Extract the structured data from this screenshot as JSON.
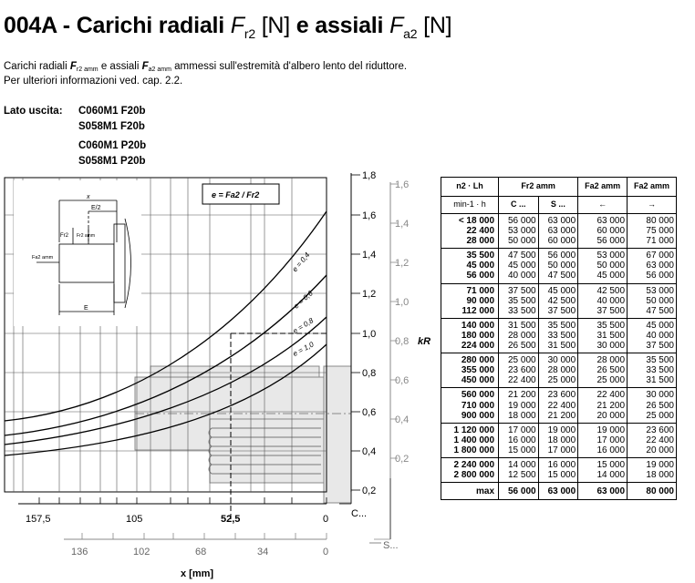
{
  "header": {
    "code": "004A",
    "title_a": "Carichi radiali",
    "title_b": "e assiali",
    "unit": "[N]",
    "sym_fr": "F",
    "sub_fr": "r2",
    "sym_fa": "F",
    "sub_fa": "a2",
    "sep": "-"
  },
  "desc": {
    "l1_a": "Carichi radiali",
    "fr": "F",
    "fr_sub": "r2 amm",
    "l1_b": "e assiali",
    "fa": "F",
    "fa_sub": "a2 amm",
    "l1_c": "ammessi sull'estremità d'albero lento del riduttore.",
    "l2": "Per ulteriori informazioni ved. cap. 2.2."
  },
  "lato": {
    "label": "Lato uscita:",
    "models": [
      "C060M1 F20b",
      "S058M1 F20b",
      "C060M1 P20b",
      "S058M1 P20b"
    ]
  },
  "chart": {
    "formula": "e = Fa2 / Fr2",
    "left_axis": [
      "1,8",
      "1,6",
      "1,4",
      "1,2",
      "1,0",
      "0,8",
      "0,6",
      "0,4",
      "0,2"
    ],
    "right_axis": [
      "1,6",
      "1,4",
      "1,2",
      "1,0",
      "0,8",
      "0,6",
      "0,4",
      "0,2"
    ],
    "kr_label": "kR",
    "c_ticks": [
      "157,5",
      "105",
      "52,5",
      "0"
    ],
    "c_label": "C...",
    "s_ticks": [
      "136",
      "102",
      "68",
      "34",
      "0"
    ],
    "s_label": "S...",
    "x_label": "x [mm]",
    "curves": [
      "e = 0,4",
      "e = 0,6",
      "e = 0,8",
      "e = 1,0"
    ],
    "diagram": {
      "x": "x",
      "e2": "E/2",
      "e": "E",
      "fr": "Fr2",
      "frmm": "Fr2 amm",
      "fa": "Fa2 amm"
    }
  },
  "table": {
    "h_n": "n2 · Lh",
    "h_unit": "min-1 · h",
    "h_fr": "Fr2 amm",
    "h_c": "C ...",
    "h_s": "S ...",
    "h_fa1": "Fa2 amm",
    "h_fa2": "Fa2 amm",
    "arrow_l": "←",
    "arrow_r": "→",
    "groups": [
      {
        "n": [
          "< 18 000",
          "22 400",
          "28 000"
        ],
        "c": [
          "56 000",
          "53 000",
          "50 000"
        ],
        "s": [
          "63 000",
          "63 000",
          "60 000"
        ],
        "fa1": [
          "63 000",
          "60 000",
          "56 000"
        ],
        "fa2": [
          "80 000",
          "75 000",
          "71 000"
        ]
      },
      {
        "n": [
          "35 500",
          "45 000",
          "56 000"
        ],
        "c": [
          "47 500",
          "45 000",
          "40 000"
        ],
        "s": [
          "56 000",
          "50 000",
          "47 500"
        ],
        "fa1": [
          "53 000",
          "50 000",
          "45 000"
        ],
        "fa2": [
          "67 000",
          "63 000",
          "56 000"
        ]
      },
      {
        "n": [
          "71 000",
          "90 000",
          "112 000"
        ],
        "c": [
          "37 500",
          "35 500",
          "33 500"
        ],
        "s": [
          "45 000",
          "42 500",
          "37 500"
        ],
        "fa1": [
          "42 500",
          "40 000",
          "37 500"
        ],
        "fa2": [
          "53 000",
          "50 000",
          "47 500"
        ]
      },
      {
        "n": [
          "140 000",
          "180 000",
          "224 000"
        ],
        "c": [
          "31 500",
          "28 000",
          "26 500"
        ],
        "s": [
          "35 500",
          "33 500",
          "31 500"
        ],
        "fa1": [
          "35 500",
          "31 500",
          "30 000"
        ],
        "fa2": [
          "45 000",
          "40 000",
          "37 500"
        ]
      },
      {
        "n": [
          "280 000",
          "355 000",
          "450 000"
        ],
        "c": [
          "25 000",
          "23 600",
          "22 400"
        ],
        "s": [
          "30 000",
          "28 000",
          "25 000"
        ],
        "fa1": [
          "28 000",
          "26 500",
          "25 000"
        ],
        "fa2": [
          "35 500",
          "33 500",
          "31 500"
        ]
      },
      {
        "n": [
          "560 000",
          "710 000",
          "900 000"
        ],
        "c": [
          "21 200",
          "19 000",
          "18 000"
        ],
        "s": [
          "23 600",
          "22 400",
          "21 200"
        ],
        "fa1": [
          "22 400",
          "21 200",
          "20 000"
        ],
        "fa2": [
          "30 000",
          "26 500",
          "25 000"
        ]
      },
      {
        "n": [
          "1 120 000",
          "1 400 000",
          "1 800 000"
        ],
        "c": [
          "17 000",
          "16 000",
          "15 000"
        ],
        "s": [
          "19 000",
          "18 000",
          "17 000"
        ],
        "fa1": [
          "19 000",
          "17 000",
          "16 000"
        ],
        "fa2": [
          "23 600",
          "22 400",
          "20 000"
        ]
      },
      {
        "n": [
          "2 240 000",
          "2 800 000"
        ],
        "c": [
          "14 000",
          "12 500"
        ],
        "s": [
          "16 000",
          "15 000"
        ],
        "fa1": [
          "15 000",
          "14 000"
        ],
        "fa2": [
          "19 000",
          "18 000"
        ]
      }
    ],
    "max": {
      "label": "max",
      "c": "56 000",
      "s": "63 000",
      "fa1": "63 000",
      "fa2": "80 000"
    }
  }
}
